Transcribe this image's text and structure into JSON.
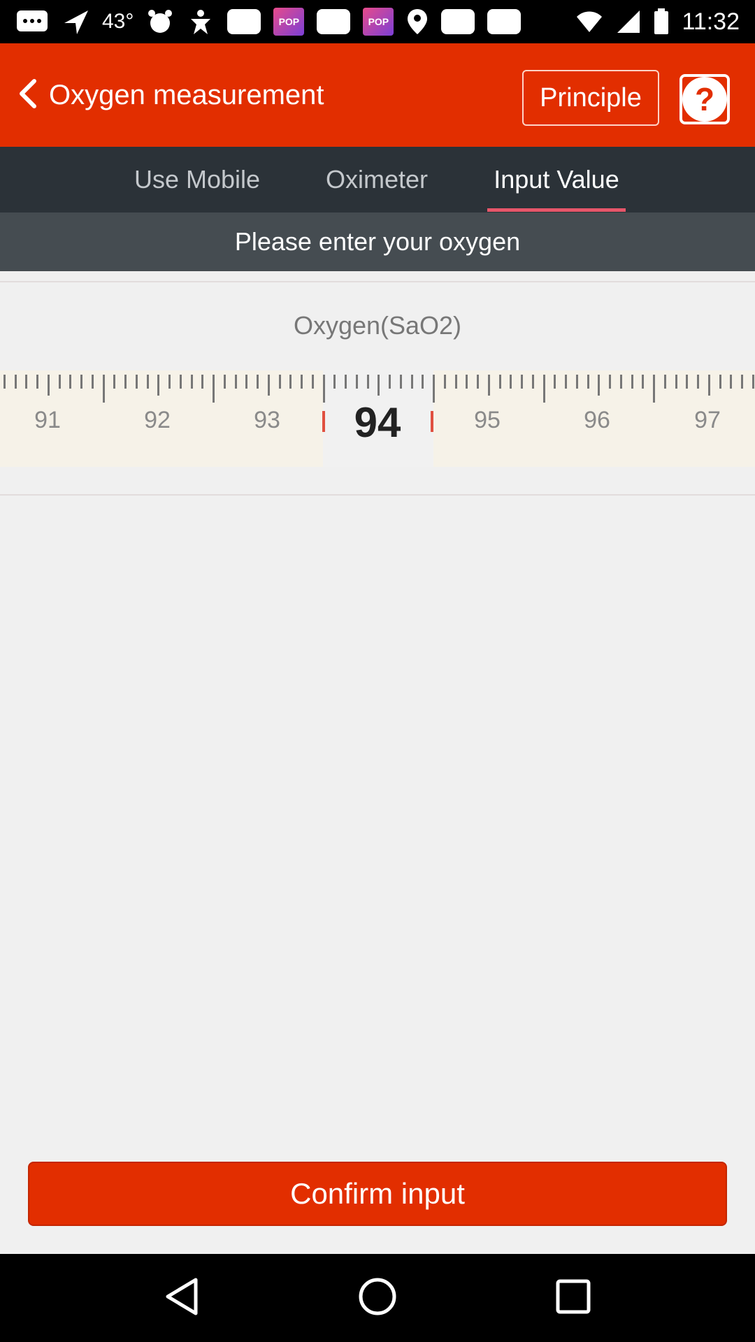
{
  "status_bar": {
    "temperature": "43°",
    "time": "11:32",
    "pop_label": "POP"
  },
  "header": {
    "title": "Oxygen measurement",
    "principle_label": "Principle",
    "help_symbol": "?"
  },
  "tabs": [
    {
      "label": "Use Mobile"
    },
    {
      "label": "Oximeter"
    },
    {
      "label": "Input Value"
    }
  ],
  "prompt": "Please enter your oxygen",
  "ruler": {
    "title": "Oxygen",
    "unit": "(SaO2)",
    "selected_value": "94",
    "tick_labels": [
      "91",
      "92",
      "93",
      "95",
      "96",
      "97"
    ]
  },
  "confirm_label": "Confirm input",
  "colors": {
    "accent": "#e22e00",
    "tab_bar": "#2b3238",
    "banner": "#454c51",
    "tab_underline": "#e7566a"
  },
  "icons": {
    "back": "chevron-left-icon",
    "help": "question-mark-icon",
    "nav_back": "triangle-back-icon",
    "nav_home": "circle-home-icon",
    "nav_recent": "square-recent-icon"
  }
}
